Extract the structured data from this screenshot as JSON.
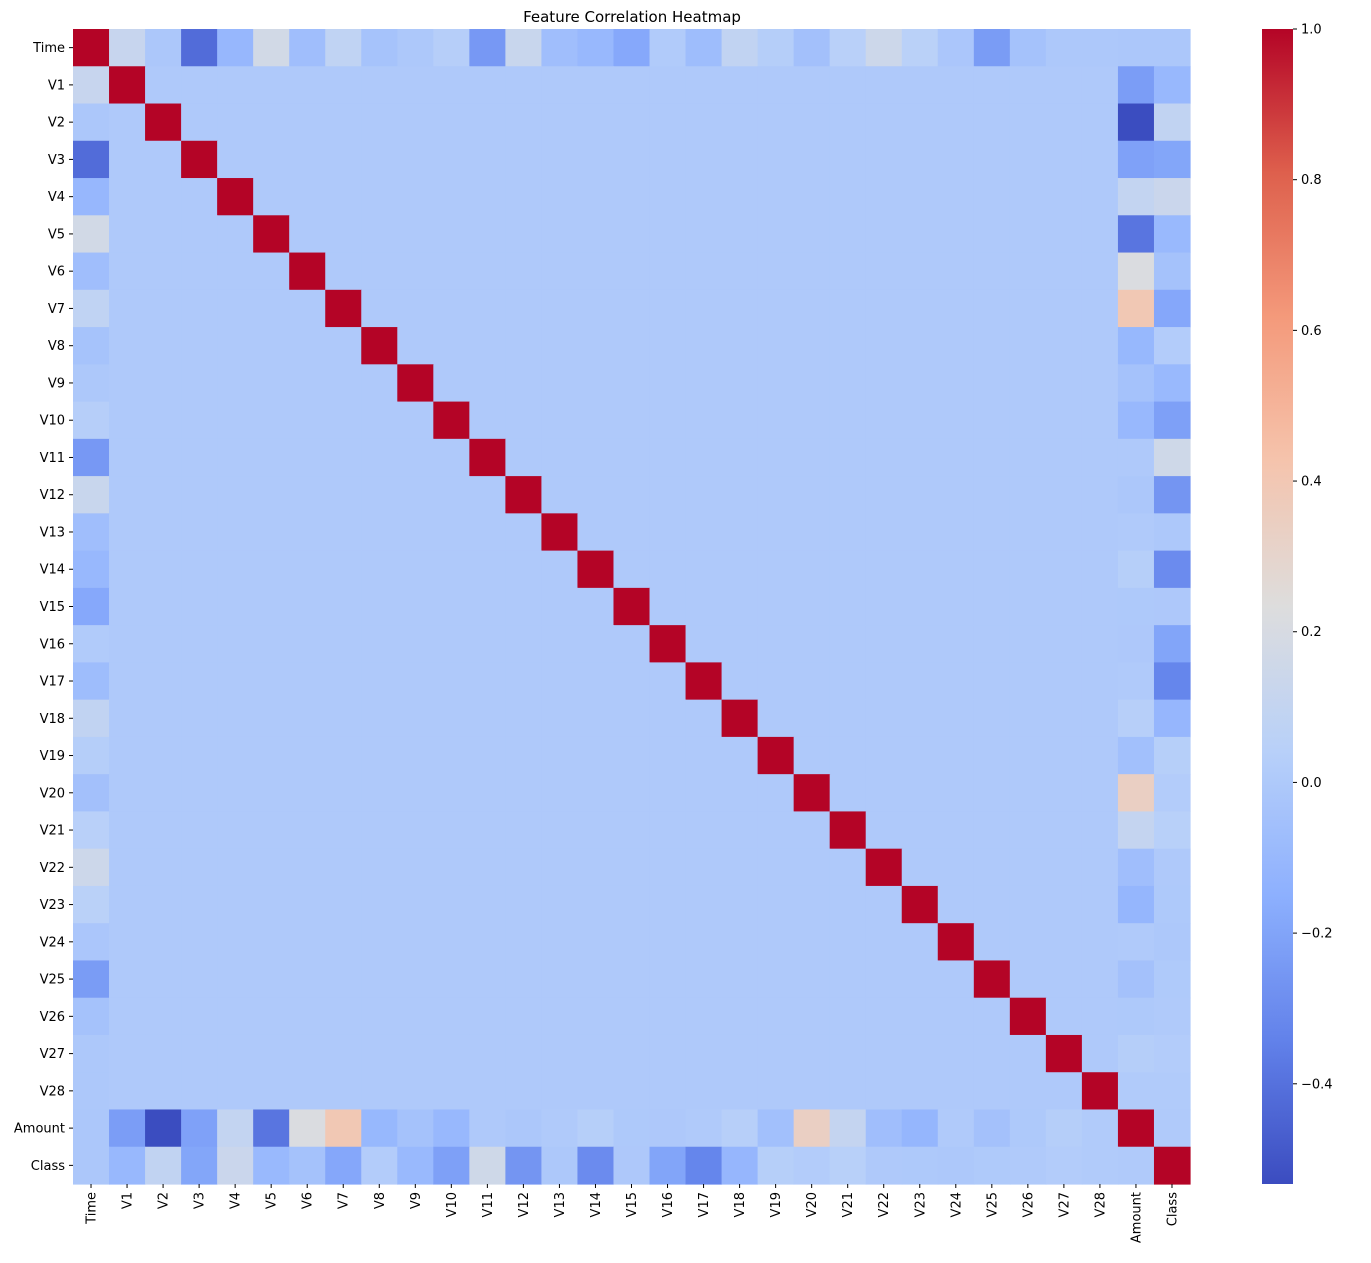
{
  "chart_data": {
    "type": "heatmap",
    "title": "Feature Correlation Heatmap",
    "xlabel": "",
    "ylabel": "",
    "labels": [
      "Time",
      "V1",
      "V2",
      "V3",
      "V4",
      "V5",
      "V6",
      "V7",
      "V8",
      "V9",
      "V10",
      "V11",
      "V12",
      "V13",
      "V14",
      "V15",
      "V16",
      "V17",
      "V18",
      "V19",
      "V20",
      "V21",
      "V22",
      "V23",
      "V24",
      "V25",
      "V26",
      "V27",
      "V28",
      "Amount",
      "Class"
    ],
    "colorbar": {
      "colormap": "coolwarm",
      "vmin": -0.533,
      "vmax": 1.0,
      "ticks": [
        1.0,
        0.8,
        0.6,
        0.4,
        0.2,
        0.0,
        -0.2,
        -0.4
      ],
      "tick_labels": [
        "1.0",
        "0.8",
        "0.6",
        "0.4",
        "0.2",
        "0.0",
        "−0.2",
        "−0.4"
      ]
    },
    "values": [
      [
        1.0,
        0.117,
        -0.011,
        -0.42,
        -0.105,
        0.173,
        -0.063,
        0.085,
        -0.037,
        -0.009,
        0.031,
        -0.248,
        0.124,
        -0.066,
        -0.099,
        -0.183,
        0.012,
        -0.073,
        0.09,
        0.029,
        -0.051,
        0.045,
        0.144,
        0.051,
        -0.016,
        -0.233,
        -0.041,
        -0.005,
        -0.009,
        -0.011,
        -0.012
      ],
      [
        0.117,
        1.0,
        0,
        0,
        0,
        0,
        0,
        0,
        0,
        0,
        0,
        0,
        0,
        0,
        0,
        0,
        0,
        0,
        0,
        0,
        0,
        0,
        0,
        0,
        0,
        0,
        0,
        0,
        0,
        -0.228,
        -0.101
      ],
      [
        -0.011,
        0,
        1.0,
        0,
        0,
        0,
        0,
        0,
        0,
        0,
        0,
        0,
        0,
        0,
        0,
        0,
        0,
        0,
        0,
        0,
        0,
        0,
        0,
        0,
        0,
        0,
        0,
        0,
        0,
        -0.531,
        0.091
      ],
      [
        -0.42,
        0,
        0,
        1.0,
        0,
        0,
        0,
        0,
        0,
        0,
        0,
        0,
        0,
        0,
        0,
        0,
        0,
        0,
        0,
        0,
        0,
        0,
        0,
        0,
        0,
        0,
        0,
        0,
        0,
        -0.211,
        -0.193
      ],
      [
        -0.105,
        0,
        0,
        0,
        1.0,
        0,
        0,
        0,
        0,
        0,
        0,
        0,
        0,
        0,
        0,
        0,
        0,
        0,
        0,
        0,
        0,
        0,
        0,
        0,
        0,
        0,
        0,
        0,
        0,
        0.099,
        0.133
      ],
      [
        0.173,
        0,
        0,
        0,
        0,
        1.0,
        0,
        0,
        0,
        0,
        0,
        0,
        0,
        0,
        0,
        0,
        0,
        0,
        0,
        0,
        0,
        0,
        0,
        0,
        0,
        0,
        0,
        0,
        0,
        -0.386,
        -0.095
      ],
      [
        -0.063,
        0,
        0,
        0,
        0,
        0,
        1.0,
        0,
        0,
        0,
        0,
        0,
        0,
        0,
        0,
        0,
        0,
        0,
        0,
        0,
        0,
        0,
        0,
        0,
        0,
        0,
        0,
        0,
        0,
        0.216,
        -0.044
      ],
      [
        0.085,
        0,
        0,
        0,
        0,
        0,
        0,
        1.0,
        0,
        0,
        0,
        0,
        0,
        0,
        0,
        0,
        0,
        0,
        0,
        0,
        0,
        0,
        0,
        0,
        0,
        0,
        0,
        0,
        0,
        0.397,
        -0.187
      ],
      [
        -0.037,
        0,
        0,
        0,
        0,
        0,
        0,
        0,
        1.0,
        0,
        0,
        0,
        0,
        0,
        0,
        0,
        0,
        0,
        0,
        0,
        0,
        0,
        0,
        0,
        0,
        0,
        0,
        0,
        0,
        -0.103,
        0.02
      ],
      [
        -0.009,
        0,
        0,
        0,
        0,
        0,
        0,
        0,
        0,
        1.0,
        0,
        0,
        0,
        0,
        0,
        0,
        0,
        0,
        0,
        0,
        0,
        0,
        0,
        0,
        0,
        0,
        0,
        0,
        0,
        -0.044,
        -0.098
      ],
      [
        0.031,
        0,
        0,
        0,
        0,
        0,
        0,
        0,
        0,
        0,
        1.0,
        0,
        0,
        0,
        0,
        0,
        0,
        0,
        0,
        0,
        0,
        0,
        0,
        0,
        0,
        0,
        0,
        0,
        0,
        -0.102,
        -0.217
      ],
      [
        -0.248,
        0,
        0,
        0,
        0,
        0,
        0,
        0,
        0,
        0,
        0,
        1.0,
        0,
        0,
        0,
        0,
        0,
        0,
        0,
        0,
        0,
        0,
        0,
        0,
        0,
        0,
        0,
        0,
        0,
        0.0,
        0.155
      ],
      [
        0.124,
        0,
        0,
        0,
        0,
        0,
        0,
        0,
        0,
        0,
        0,
        0,
        1.0,
        0,
        0,
        0,
        0,
        0,
        0,
        0,
        0,
        0,
        0,
        0,
        0,
        0,
        0,
        0,
        0,
        -0.01,
        -0.261
      ],
      [
        -0.066,
        0,
        0,
        0,
        0,
        0,
        0,
        0,
        0,
        0,
        0,
        0,
        0,
        1.0,
        0,
        0,
        0,
        0,
        0,
        0,
        0,
        0,
        0,
        0,
        0,
        0,
        0,
        0,
        0,
        0.005,
        -0.005
      ],
      [
        -0.099,
        0,
        0,
        0,
        0,
        0,
        0,
        0,
        0,
        0,
        0,
        0,
        0,
        0,
        1.0,
        0,
        0,
        0,
        0,
        0,
        0,
        0,
        0,
        0,
        0,
        0,
        0,
        0,
        0,
        0.034,
        -0.303
      ],
      [
        -0.183,
        0,
        0,
        0,
        0,
        0,
        0,
        0,
        0,
        0,
        0,
        0,
        0,
        0,
        0,
        1.0,
        0,
        0,
        0,
        0,
        0,
        0,
        0,
        0,
        0,
        0,
        0,
        0,
        0,
        -0.003,
        -0.004
      ],
      [
        0.012,
        0,
        0,
        0,
        0,
        0,
        0,
        0,
        0,
        0,
        0,
        0,
        0,
        0,
        0,
        0,
        1.0,
        0,
        0,
        0,
        0,
        0,
        0,
        0,
        0,
        0,
        0,
        0,
        0,
        -0.004,
        -0.197
      ],
      [
        -0.073,
        0,
        0,
        0,
        0,
        0,
        0,
        0,
        0,
        0,
        0,
        0,
        0,
        0,
        0,
        0,
        0,
        1.0,
        0,
        0,
        0,
        0,
        0,
        0,
        0,
        0,
        0,
        0,
        0,
        0.007,
        -0.326
      ],
      [
        0.09,
        0,
        0,
        0,
        0,
        0,
        0,
        0,
        0,
        0,
        0,
        0,
        0,
        0,
        0,
        0,
        0,
        0,
        1.0,
        0,
        0,
        0,
        0,
        0,
        0,
        0,
        0,
        0,
        0,
        0.036,
        -0.111
      ],
      [
        0.029,
        0,
        0,
        0,
        0,
        0,
        0,
        0,
        0,
        0,
        0,
        0,
        0,
        0,
        0,
        0,
        0,
        0,
        0,
        1.0,
        0,
        0,
        0,
        0,
        0,
        0,
        0,
        0,
        0,
        -0.056,
        0.035
      ],
      [
        -0.051,
        0,
        0,
        0,
        0,
        0,
        0,
        0,
        0,
        0,
        0,
        0,
        0,
        0,
        0,
        0,
        0,
        0,
        0,
        0,
        1.0,
        0,
        0,
        0,
        0,
        0,
        0,
        0,
        0,
        0.339,
        0.02
      ],
      [
        0.045,
        0,
        0,
        0,
        0,
        0,
        0,
        0,
        0,
        0,
        0,
        0,
        0,
        0,
        0,
        0,
        0,
        0,
        0,
        0,
        0,
        1.0,
        0,
        0,
        0,
        0,
        0,
        0,
        0,
        0.106,
        0.04
      ],
      [
        0.144,
        0,
        0,
        0,
        0,
        0,
        0,
        0,
        0,
        0,
        0,
        0,
        0,
        0,
        0,
        0,
        0,
        0,
        0,
        0,
        0,
        0,
        1.0,
        0,
        0,
        0,
        0,
        0,
        0,
        -0.065,
        0.001
      ],
      [
        0.051,
        0,
        0,
        0,
        0,
        0,
        0,
        0,
        0,
        0,
        0,
        0,
        0,
        0,
        0,
        0,
        0,
        0,
        0,
        0,
        0,
        0,
        0,
        1.0,
        0,
        0,
        0,
        0,
        0,
        -0.113,
        -0.003
      ],
      [
        -0.016,
        0,
        0,
        0,
        0,
        0,
        0,
        0,
        0,
        0,
        0,
        0,
        0,
        0,
        0,
        0,
        0,
        0,
        0,
        0,
        0,
        0,
        0,
        0,
        1.0,
        0,
        0,
        0,
        0,
        0.005,
        -0.007
      ],
      [
        -0.233,
        0,
        0,
        0,
        0,
        0,
        0,
        0,
        0,
        0,
        0,
        0,
        0,
        0,
        0,
        0,
        0,
        0,
        0,
        0,
        0,
        0,
        0,
        0,
        0,
        1.0,
        0,
        0,
        0,
        -0.048,
        0.003
      ],
      [
        -0.041,
        0,
        0,
        0,
        0,
        0,
        0,
        0,
        0,
        0,
        0,
        0,
        0,
        0,
        0,
        0,
        0,
        0,
        0,
        0,
        0,
        0,
        0,
        0,
        0,
        0,
        1.0,
        0,
        0,
        -0.003,
        0.004
      ],
      [
        -0.005,
        0,
        0,
        0,
        0,
        0,
        0,
        0,
        0,
        0,
        0,
        0,
        0,
        0,
        0,
        0,
        0,
        0,
        0,
        0,
        0,
        0,
        0,
        0,
        0,
        0,
        0,
        1.0,
        0,
        0.029,
        0.018
      ],
      [
        -0.009,
        0,
        0,
        0,
        0,
        0,
        0,
        0,
        0,
        0,
        0,
        0,
        0,
        0,
        0,
        0,
        0,
        0,
        0,
        0,
        0,
        0,
        0,
        0,
        0,
        0,
        0,
        0,
        1.0,
        0.01,
        0.01
      ],
      [
        -0.011,
        -0.228,
        -0.531,
        -0.211,
        0.099,
        -0.386,
        0.216,
        0.397,
        -0.103,
        -0.044,
        -0.102,
        0.0,
        -0.01,
        0.005,
        0.034,
        -0.003,
        -0.004,
        0.007,
        0.036,
        -0.056,
        0.339,
        0.106,
        -0.065,
        -0.113,
        0.005,
        -0.048,
        -0.003,
        0.029,
        0.01,
        1.0,
        0.006
      ],
      [
        -0.012,
        -0.101,
        0.091,
        -0.193,
        0.133,
        -0.095,
        -0.044,
        -0.187,
        0.02,
        -0.098,
        -0.217,
        0.155,
        -0.261,
        -0.005,
        -0.303,
        -0.004,
        -0.197,
        -0.326,
        -0.111,
        0.035,
        0.02,
        0.04,
        0.001,
        -0.003,
        -0.007,
        0.003,
        0.004,
        0.018,
        0.01,
        0.006,
        1.0
      ]
    ]
  }
}
